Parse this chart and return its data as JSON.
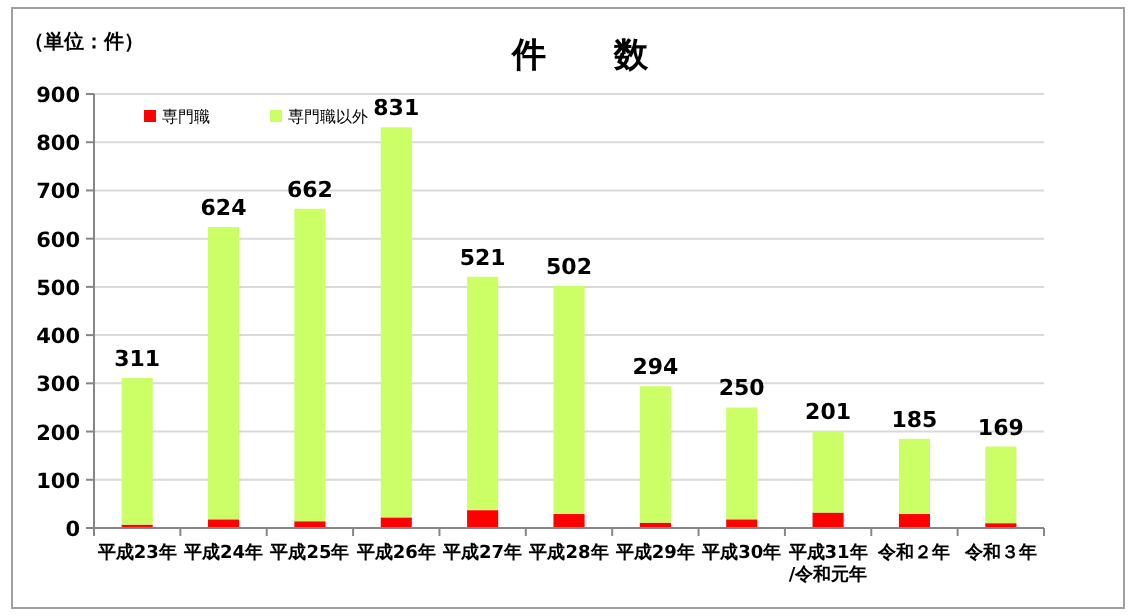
{
  "chart_data": {
    "type": "bar",
    "title": "件　　数",
    "stacked": true,
    "categories": [
      "平成23年",
      "平成24年",
      "平成25年",
      "平成26年",
      "平成27年",
      "平成28年",
      "平成29年",
      "平成30年",
      "平成31年\n/令和元年",
      "令和２年",
      "令和３年"
    ],
    "series": [
      {
        "name": "専門職",
        "color": "#ff0000",
        "values": [
          7,
          18,
          14,
          22,
          37,
          29,
          11,
          18,
          32,
          29,
          10
        ]
      },
      {
        "name": "専門職以外",
        "color": "#ccff66",
        "values": [
          304,
          606,
          648,
          809,
          484,
          473,
          283,
          232,
          169,
          156,
          159
        ]
      }
    ],
    "totals": [
      "311",
      "624",
      "662",
      "831",
      "521",
      "502",
      "294",
      "250",
      "201",
      "185",
      "169"
    ],
    "ylim": [
      0,
      900
    ],
    "yticks": [
      0,
      100,
      200,
      300,
      400,
      500,
      600,
      700,
      800,
      900
    ],
    "grid": "y",
    "legend": "top left",
    "annotations": [
      "（単位：件）"
    ]
  }
}
